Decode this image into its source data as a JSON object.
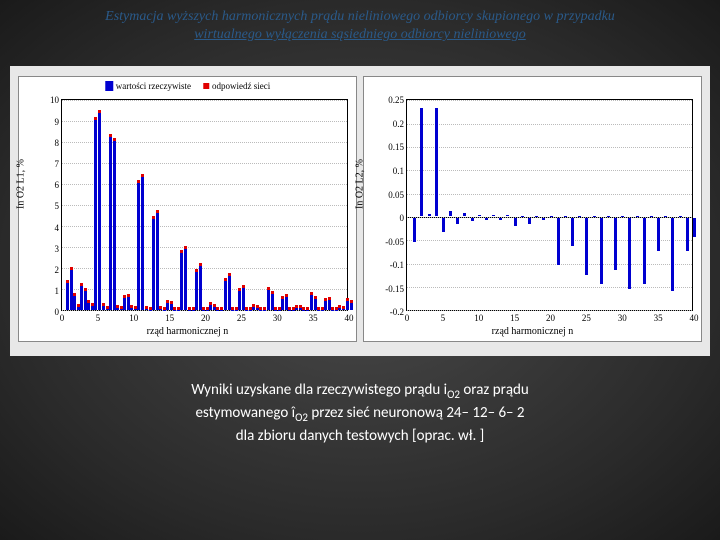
{
  "title_line1": "Estymacja wyższych harmonicznych prądu nieliniowego odbiorcy skupionego w przypadku",
  "title_line2": "wirtualnego wyłączenia sąsiedniego odbiorcy nieliniowego",
  "legend": {
    "bar": "wartości rzeczywiste",
    "dot": "odpowiedź sieci"
  },
  "xlabel": "rząd harmonicznej n",
  "left_chart": {
    "ylabel": "In O2 L1, %",
    "ylim": [
      0,
      10
    ],
    "ytick_step": 1,
    "xlim": [
      0,
      40
    ],
    "xtick_step": 5,
    "bar_color": "#0000d0",
    "dot_color": "#e00000",
    "background": "#ffffff",
    "grid_color": "#bbbbbb",
    "data": [
      {
        "x": 1,
        "a": 1.3,
        "b": 1.9
      },
      {
        "x": 2,
        "a": 0.7,
        "b": 0.15
      },
      {
        "x": 3,
        "a": 1.15,
        "b": 0.9
      },
      {
        "x": 4,
        "a": 0.35,
        "b": 0.2
      },
      {
        "x": 5,
        "a": 9.0,
        "b": 9.3
      },
      {
        "x": 6,
        "a": 0.2,
        "b": 0.08
      },
      {
        "x": 7,
        "a": 8.2,
        "b": 8.0
      },
      {
        "x": 8,
        "a": 0.1,
        "b": 0.05
      },
      {
        "x": 9,
        "a": 0.6,
        "b": 0.65
      },
      {
        "x": 10,
        "a": 0.1,
        "b": 0.05
      },
      {
        "x": 11,
        "a": 6.0,
        "b": 6.3
      },
      {
        "x": 12,
        "a": 0.08,
        "b": 0.04
      },
      {
        "x": 13,
        "a": 4.3,
        "b": 4.6
      },
      {
        "x": 14,
        "a": 0.05,
        "b": 0.03
      },
      {
        "x": 15,
        "a": 0.33,
        "b": 0.28
      },
      {
        "x": 16,
        "a": 0.04,
        "b": 0.03
      },
      {
        "x": 17,
        "a": 2.7,
        "b": 2.9
      },
      {
        "x": 18,
        "a": 0.03,
        "b": 0.02
      },
      {
        "x": 19,
        "a": 1.8,
        "b": 2.1
      },
      {
        "x": 20,
        "a": 0.03,
        "b": 0.02
      },
      {
        "x": 21,
        "a": 0.24,
        "b": 0.18
      },
      {
        "x": 22,
        "a": 0.02,
        "b": 0.02
      },
      {
        "x": 23,
        "a": 1.4,
        "b": 1.6
      },
      {
        "x": 24,
        "a": 0.02,
        "b": 0.02
      },
      {
        "x": 25,
        "a": 0.9,
        "b": 1.05
      },
      {
        "x": 26,
        "a": 0.02,
        "b": 0.01
      },
      {
        "x": 27,
        "a": 0.17,
        "b": 0.12
      },
      {
        "x": 28,
        "a": 0.02,
        "b": 0.01
      },
      {
        "x": 29,
        "a": 0.95,
        "b": 0.78
      },
      {
        "x": 30,
        "a": 0.02,
        "b": 0.01
      },
      {
        "x": 31,
        "a": 0.55,
        "b": 0.62
      },
      {
        "x": 32,
        "a": 0.01,
        "b": 0.01
      },
      {
        "x": 33,
        "a": 0.13,
        "b": 0.09
      },
      {
        "x": 34,
        "a": 0.01,
        "b": 0.01
      },
      {
        "x": 35,
        "a": 0.72,
        "b": 0.55
      },
      {
        "x": 36,
        "a": 0.01,
        "b": 0.01
      },
      {
        "x": 37,
        "a": 0.45,
        "b": 0.5
      },
      {
        "x": 38,
        "a": 0.01,
        "b": 0.01
      },
      {
        "x": 39,
        "a": 0.1,
        "b": 0.07
      },
      {
        "x": 40,
        "a": 0.45,
        "b": 0.35
      }
    ]
  },
  "right_chart": {
    "ylabel": "In O2 L2, %",
    "ylim": [
      -0.2,
      0.25
    ],
    "yticks": [
      -0.2,
      -0.15,
      -0.1,
      -0.05,
      0,
      0.05,
      0.1,
      0.15,
      0.2,
      0.25
    ],
    "xlim": [
      0,
      40
    ],
    "xtick_step": 5,
    "bar_color": "#0000d0",
    "background": "#ffffff",
    "grid_color": "#bbbbbb",
    "data": [
      {
        "x": 1,
        "v": -0.05
      },
      {
        "x": 2,
        "v": 0.23
      },
      {
        "x": 3,
        "v": 0.005
      },
      {
        "x": 4,
        "v": 0.23
      },
      {
        "x": 5,
        "v": -0.03
      },
      {
        "x": 6,
        "v": 0.01
      },
      {
        "x": 7,
        "v": -0.012
      },
      {
        "x": 8,
        "v": 0.006
      },
      {
        "x": 9,
        "v": -0.006
      },
      {
        "x": 10,
        "v": 0.003
      },
      {
        "x": 11,
        "v": -0.003
      },
      {
        "x": 12,
        "v": 0.002
      },
      {
        "x": 13,
        "v": -0.003
      },
      {
        "x": 14,
        "v": 0.002
      },
      {
        "x": 15,
        "v": -0.016
      },
      {
        "x": 16,
        "v": 0.001
      },
      {
        "x": 17,
        "v": -0.012
      },
      {
        "x": 18,
        "v": 0.001
      },
      {
        "x": 19,
        "v": -0.005
      },
      {
        "x": 20,
        "v": 0.001
      },
      {
        "x": 21,
        "v": -0.1
      },
      {
        "x": 22,
        "v": 0.001
      },
      {
        "x": 23,
        "v": -0.06
      },
      {
        "x": 24,
        "v": 0.001
      },
      {
        "x": 25,
        "v": -0.12
      },
      {
        "x": 26,
        "v": 0.001
      },
      {
        "x": 27,
        "v": -0.14
      },
      {
        "x": 28,
        "v": 0.001
      },
      {
        "x": 29,
        "v": -0.11
      },
      {
        "x": 30,
        "v": 0.001
      },
      {
        "x": 31,
        "v": -0.15
      },
      {
        "x": 32,
        "v": 0.001
      },
      {
        "x": 33,
        "v": -0.14
      },
      {
        "x": 34,
        "v": 0.001
      },
      {
        "x": 35,
        "v": -0.07
      },
      {
        "x": 36,
        "v": 0.001
      },
      {
        "x": 37,
        "v": -0.155
      },
      {
        "x": 38,
        "v": 0.001
      },
      {
        "x": 39,
        "v": -0.07
      },
      {
        "x": 40,
        "v": -0.04
      }
    ]
  },
  "caption_l1a": "Wyniki uzyskane dla rzeczywistego prądu i",
  "caption_l1b": "  oraz prądu",
  "caption_l2a": "estymowanego î",
  "caption_l2b": " przez sieć neuronową 24– 12– 6– 2",
  "caption_l3": "dla zbioru danych testowych [oprac. wł. ]",
  "caption_sub": "O2"
}
